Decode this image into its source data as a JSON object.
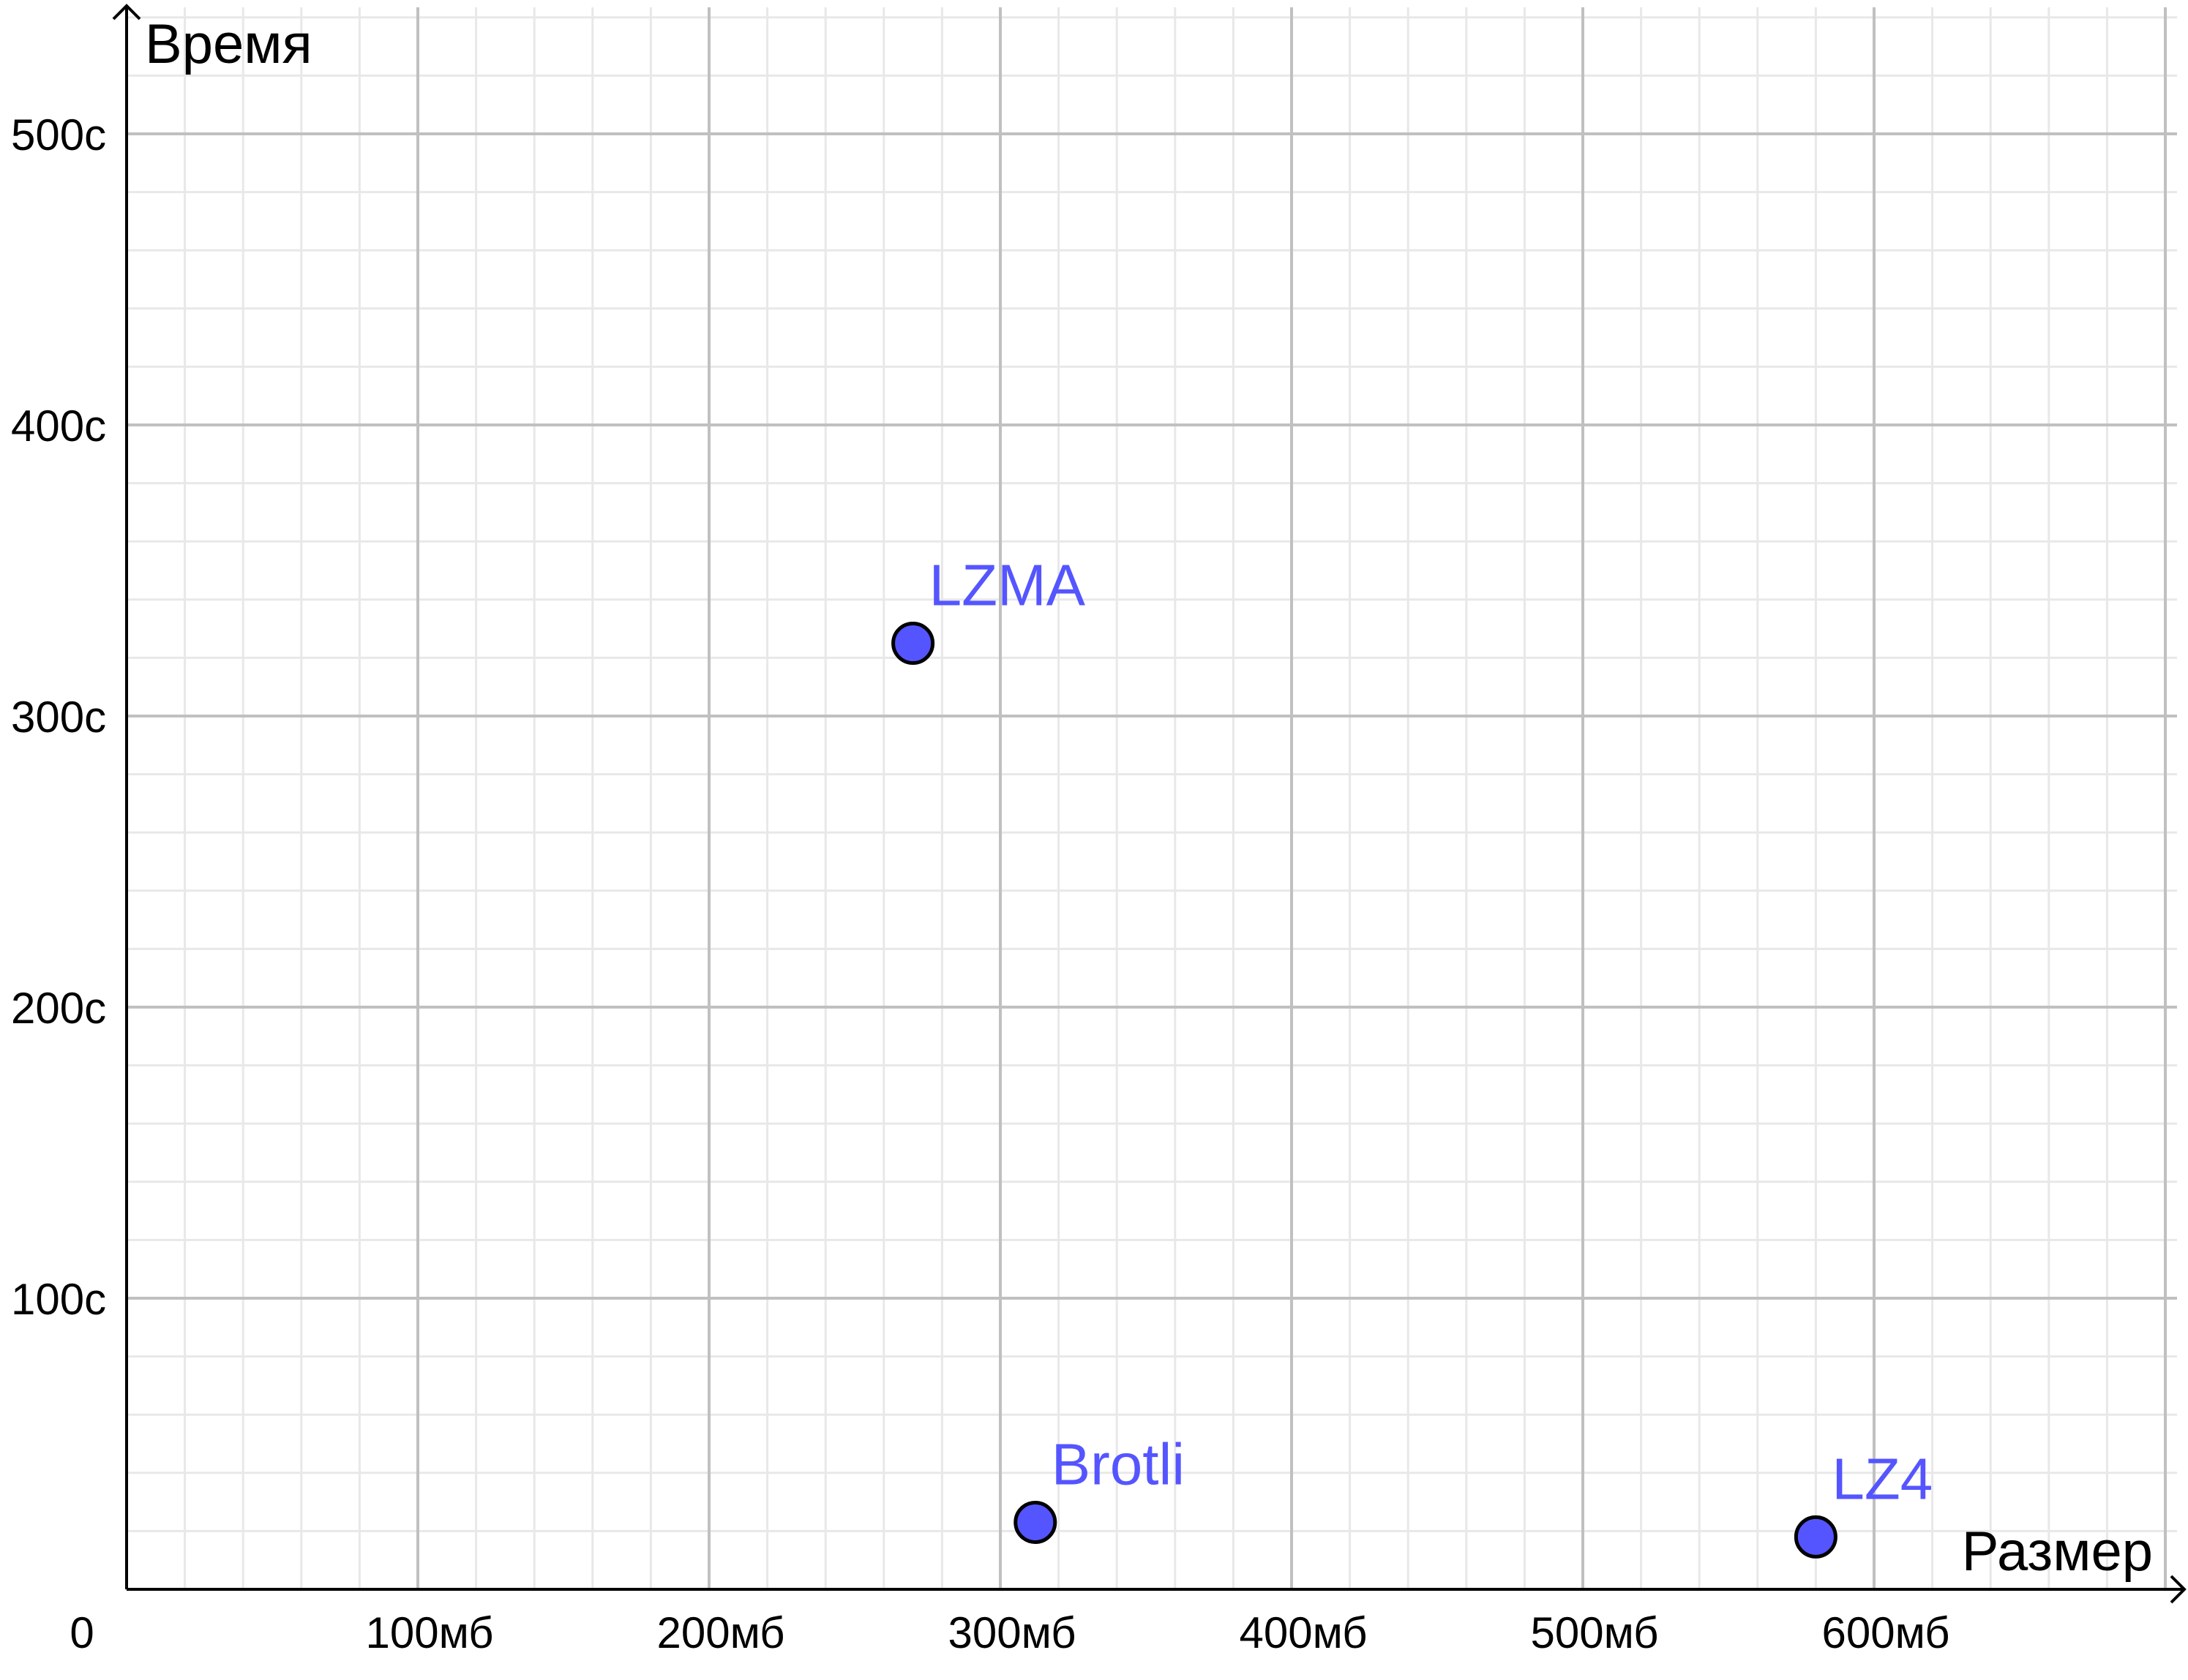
{
  "chart_data": {
    "type": "scatter",
    "title": "",
    "xlabel": "Размер",
    "ylabel": "Время",
    "xlim": [
      0,
      700
    ],
    "ylim": [
      0,
      520
    ],
    "origin_label": "0",
    "x_ticks": [
      {
        "value": 100,
        "label": "100мб"
      },
      {
        "value": 200,
        "label": "200мб"
      },
      {
        "value": 300,
        "label": "300мб"
      },
      {
        "value": 400,
        "label": "400мб"
      },
      {
        "value": 500,
        "label": "500мб"
      },
      {
        "value": 600,
        "label": "600мб"
      }
    ],
    "y_ticks": [
      {
        "value": 100,
        "label": "100с"
      },
      {
        "value": 200,
        "label": "200с"
      },
      {
        "value": 300,
        "label": "300с"
      },
      {
        "value": 400,
        "label": "400с"
      },
      {
        "value": 500,
        "label": "500с"
      }
    ],
    "grid": true,
    "minor_grid_steps": 5,
    "points": [
      {
        "label": "LZMA",
        "x": 270,
        "y": 325
      },
      {
        "label": "Brotli",
        "x": 312,
        "y": 23
      },
      {
        "label": "LZ4",
        "x": 580,
        "y": 18
      }
    ],
    "colors": {
      "point_fill": "#5555ff",
      "point_stroke": "#000000",
      "label": "#5555ff",
      "major_grid": "#c0c0c0",
      "minor_grid": "#e8e8e8",
      "axis": "#000000"
    }
  }
}
